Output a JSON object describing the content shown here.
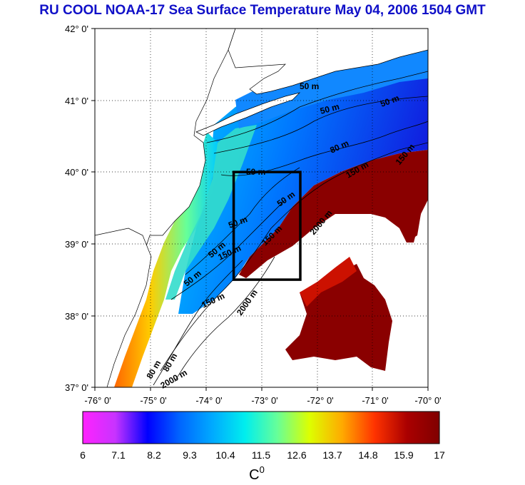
{
  "title": "RU COOL  NOAA-17 Sea Surface Temperature May 04, 2006 1504 GMT",
  "map": {
    "lon_labels": [
      "-76° 0'",
      "-75° 0'",
      "-74° 0'",
      "-73° 0'",
      "-72° 0'",
      "-71° 0'",
      "-70° 0'"
    ],
    "lat_labels": [
      "42° 0'",
      "41° 0'",
      "40° 0'",
      "39° 0'",
      "38° 0'",
      "37° 0'"
    ],
    "lon_range": [
      -76,
      -70
    ],
    "lat_range": [
      37,
      42
    ],
    "study_box": {
      "lon": [
        -73.5,
        -72.3
      ],
      "lat": [
        38.5,
        40.0
      ]
    },
    "contour_labels": [
      "50 m",
      "50 m",
      "50 m",
      "80 m",
      "50 m",
      "50 m",
      "50 m",
      "50 m",
      "50 m",
      "150 m",
      "150 m",
      "150 m",
      "150 m",
      "150 m",
      "2000 m",
      "2000 m",
      "80 m",
      "2000 m",
      "80 m"
    ]
  },
  "colorbar": {
    "ticks": [
      "6",
      "7.1",
      "8.2",
      "9.3",
      "10.4",
      "11.5",
      "12.6",
      "13.7",
      "14.8",
      "15.9",
      "17"
    ],
    "unit_label": "C",
    "unit_superscript": "0",
    "colors": [
      "#ff22ff",
      "#c833ff",
      "#0000ff",
      "#0066ff",
      "#00aaff",
      "#00eeee",
      "#66ff99",
      "#ddff00",
      "#ffaa00",
      "#ff3300",
      "#aa0000",
      "#800000"
    ]
  }
}
